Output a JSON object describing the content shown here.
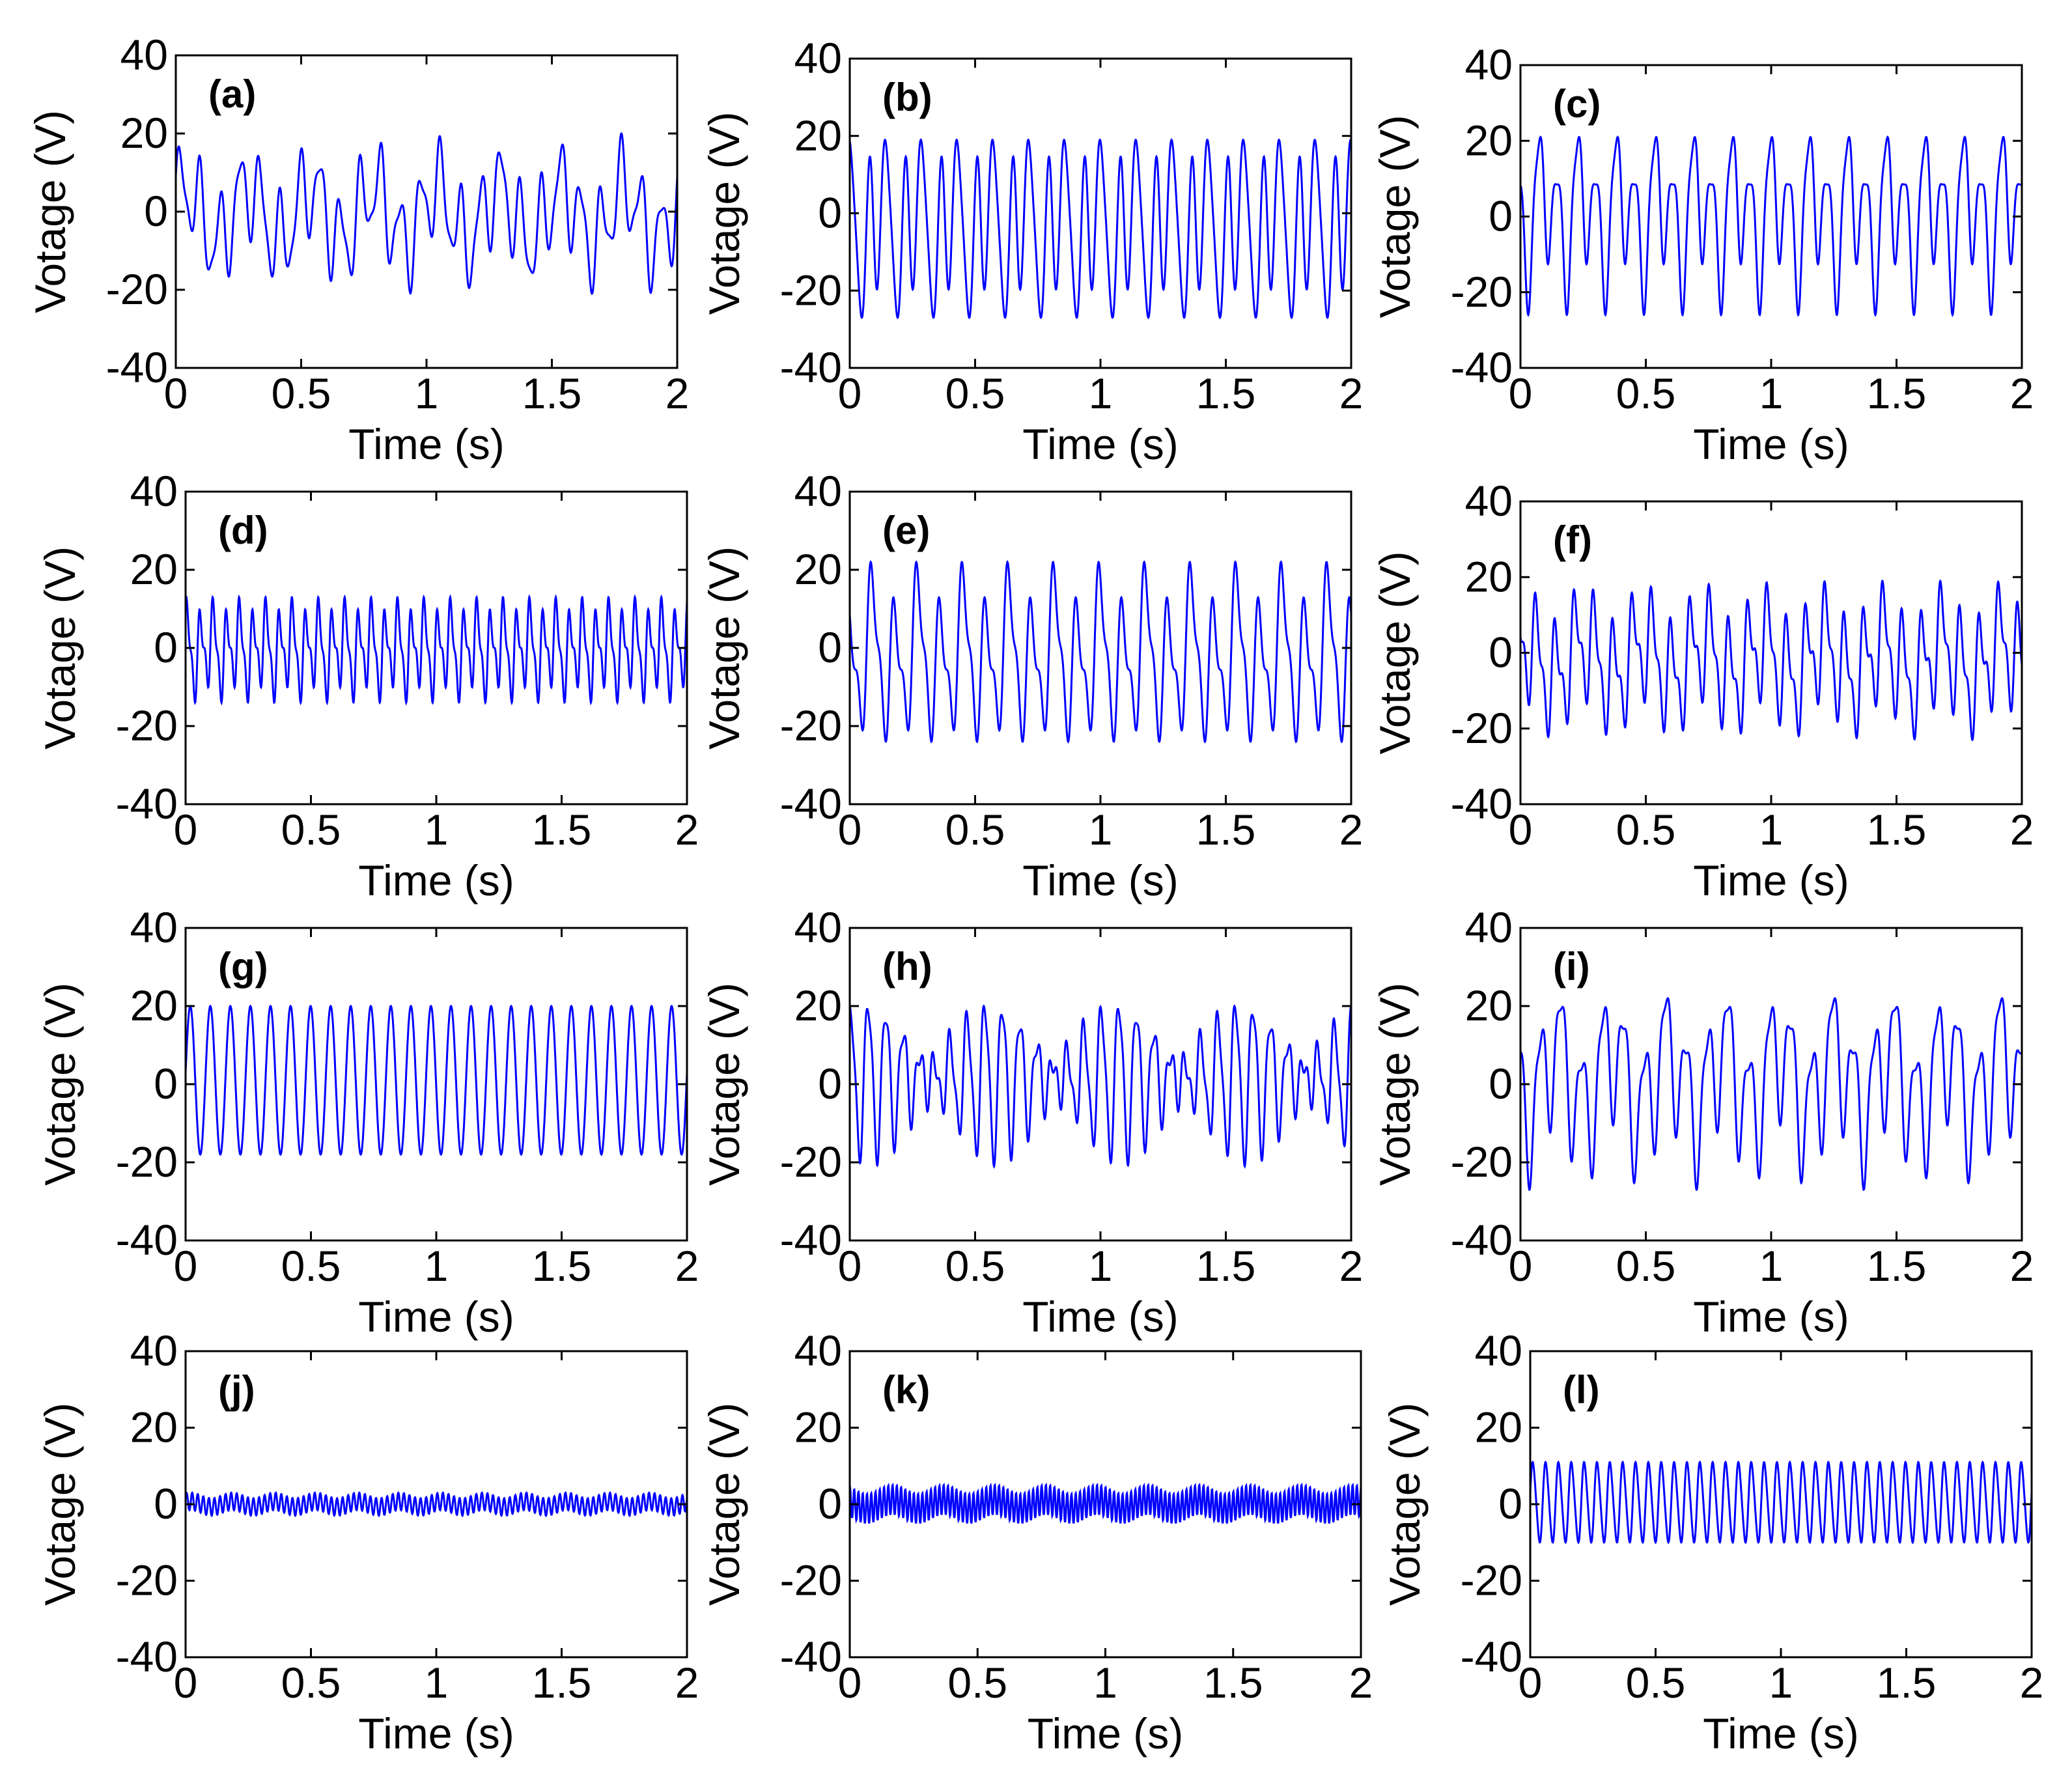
{
  "figure": {
    "shared": {
      "xlabel": "Time (s)",
      "ylabel": "Votage (V)",
      "xlim": [
        0,
        2
      ],
      "ylim": [
        -40,
        40
      ],
      "xticks": [
        0,
        0.5,
        1,
        1.5,
        2
      ],
      "xtick_labels": [
        "0",
        "0.5",
        "1",
        "1.5",
        "2"
      ],
      "yticks": [
        -40,
        -20,
        0,
        20,
        40
      ],
      "ytick_labels": [
        "-40",
        "-20",
        "0",
        "20",
        "40"
      ],
      "line_color": "#0000ff"
    }
  },
  "chart_data": [
    {
      "type": "line",
      "label": "(a)",
      "title": "",
      "xlabel": "Time (s)",
      "ylabel": "Votage (V)",
      "xlim": [
        0,
        2
      ],
      "ylim": [
        -40,
        40
      ],
      "grid": false,
      "series": [
        {
          "name": "(a)",
          "color": "#0000ff",
          "signal": {
            "description": "multi-tone oscillation",
            "components": [
              {
                "amp": 9,
                "freq": 12.5
              },
              {
                "amp": 6,
                "freq": 4
              },
              {
                "amp": 3,
                "freq": 22
              }
            ],
            "envelope_range": [
              -21,
              20
            ]
          }
        }
      ]
    },
    {
      "type": "line",
      "label": "(b)",
      "title": "",
      "xlabel": "Time (s)",
      "ylabel": "Votage (V)",
      "xlim": [
        0,
        2
      ],
      "ylim": [
        -40,
        40
      ],
      "grid": false,
      "series": [
        {
          "name": "(b)",
          "color": "#0000ff",
          "signal": {
            "components": [
              {
                "amp": 12,
                "freq": 14
              },
              {
                "amp": 6,
                "freq": 7
              },
              {
                "amp": 4,
                "freq": 21
              }
            ],
            "envelope_range": [
              -27,
              19
            ]
          }
        }
      ]
    },
    {
      "type": "line",
      "label": "(c)",
      "title": "",
      "xlabel": "Time (s)",
      "ylabel": "Votage (V)",
      "xlim": [
        0,
        2
      ],
      "ylim": [
        -40,
        40
      ],
      "grid": false,
      "series": [
        {
          "name": "(c)",
          "color": "#0000ff",
          "signal": {
            "components": [
              {
                "amp": 12,
                "freq": 13
              },
              {
                "amp": 6,
                "freq": 6.5
              },
              {
                "amp": 3,
                "freq": 26
              }
            ],
            "envelope_range": [
              -26,
              21
            ]
          }
        }
      ]
    },
    {
      "type": "line",
      "label": "(d)",
      "title": "",
      "xlabel": "Time (s)",
      "ylabel": "Votage (V)",
      "xlim": [
        0,
        2
      ],
      "ylim": [
        -40,
        40
      ],
      "grid": false,
      "series": [
        {
          "name": "(d)",
          "color": "#0000ff",
          "signal": {
            "components": [
              {
                "amp": 9,
                "freq": 19
              },
              {
                "amp": 4,
                "freq": 38
              },
              {
                "amp": 2,
                "freq": 9.5
              }
            ],
            "envelope_range": [
              -14,
              13
            ]
          }
        }
      ]
    },
    {
      "type": "line",
      "label": "(e)",
      "title": "",
      "xlabel": "Time (s)",
      "ylabel": "Votage (V)",
      "xlim": [
        0,
        2
      ],
      "ylim": [
        -40,
        40
      ],
      "grid": false,
      "series": [
        {
          "name": "(e)",
          "color": "#0000ff",
          "signal": {
            "components": [
              {
                "amp": 14,
                "freq": 11
              },
              {
                "amp": 6,
                "freq": 22
              },
              {
                "amp": 4,
                "freq": 5.5
              }
            ],
            "envelope_range": [
              -24,
              22
            ]
          }
        }
      ]
    },
    {
      "type": "line",
      "label": "(f)",
      "title": "",
      "xlabel": "Time (s)",
      "ylabel": "Votage (V)",
      "xlim": [
        0,
        2
      ],
      "ylim": [
        -40,
        40
      ],
      "grid": false,
      "series": [
        {
          "name": "(f)",
          "color": "#0000ff",
          "signal": {
            "components": [
              {
                "amp": 10,
                "freq": 13
              },
              {
                "amp": 5,
                "freq": 26
              },
              {
                "amp": 4,
                "freq": 4.2
              }
            ],
            "envelope_range": [
              -23,
              19
            ]
          }
        }
      ]
    },
    {
      "type": "line",
      "label": "(g)",
      "title": "",
      "xlabel": "Time (s)",
      "ylabel": "Votage (V)",
      "xlim": [
        0,
        2
      ],
      "ylim": [
        -40,
        40
      ],
      "grid": false,
      "series": [
        {
          "name": "(g)",
          "color": "#0000ff",
          "signal": {
            "components": [
              {
                "amp": 18,
                "freq": 12.5
              }
            ],
            "envelope_range": [
              -18,
              20
            ]
          }
        }
      ]
    },
    {
      "type": "line",
      "label": "(h)",
      "title": "",
      "xlabel": "Time (s)",
      "ylabel": "Votage (V)",
      "xlim": [
        0,
        2
      ],
      "ylim": [
        -40,
        40
      ],
      "grid": false,
      "series": [
        {
          "name": "(h)",
          "color": "#0000ff",
          "signal": {
            "components": [
              {
                "amp": 10,
                "freq": 15
              },
              {
                "amp": 6,
                "freq": 13
              },
              {
                "amp": 3,
                "freq": 30
              }
            ],
            "envelope_range": [
              -21,
              20
            ]
          }
        }
      ]
    },
    {
      "type": "line",
      "label": "(i)",
      "title": "",
      "xlabel": "Time (s)",
      "ylabel": "Votage (V)",
      "xlim": [
        0,
        2
      ],
      "ylim": [
        -40,
        40
      ],
      "grid": false,
      "series": [
        {
          "name": "(i)",
          "color": "#0000ff",
          "signal": {
            "components": [
              {
                "amp": 13,
                "freq": 12
              },
              {
                "amp": 7,
                "freq": 4.5
              },
              {
                "amp": 4,
                "freq": 24
              }
            ],
            "envelope_range": [
              -27,
              22
            ]
          }
        }
      ]
    },
    {
      "type": "line",
      "label": "(j)",
      "title": "",
      "xlabel": "Time (s)",
      "ylabel": "Votage (V)",
      "xlim": [
        0,
        2
      ],
      "ylim": [
        -40,
        40
      ],
      "grid": false,
      "series": [
        {
          "name": "(j)",
          "color": "#0000ff",
          "signal": {
            "components": [
              {
                "amp": 2.5,
                "freq": 45
              },
              {
                "amp": 0.8,
                "freq": 6
              }
            ],
            "envelope_range": [
              -3,
              3
            ]
          }
        }
      ]
    },
    {
      "type": "line",
      "label": "(k)",
      "title": "",
      "xlabel": "Time (s)",
      "ylabel": "Votage (V)",
      "xlim": [
        0,
        2
      ],
      "ylim": [
        -40,
        40
      ],
      "grid": false,
      "series": [
        {
          "name": "(k)",
          "color": "#0000ff",
          "signal": {
            "components": [
              {
                "amp": 4,
                "freq": 60
              },
              {
                "amp": 1.2,
                "freq": 5
              }
            ],
            "envelope_range": [
              -5,
              5
            ]
          }
        }
      ]
    },
    {
      "type": "line",
      "label": "(l)",
      "title": "",
      "xlabel": "Time (s)",
      "ylabel": "Votage (V)",
      "xlim": [
        0,
        2
      ],
      "ylim": [
        -40,
        40
      ],
      "grid": false,
      "series": [
        {
          "name": "(l)",
          "color": "#0000ff",
          "signal": {
            "components": [
              {
                "amp": 10,
                "freq": 19.5
              },
              {
                "amp": 1,
                "freq": 39
              }
            ],
            "envelope_range": [
              -10,
              11
            ]
          }
        }
      ]
    }
  ]
}
